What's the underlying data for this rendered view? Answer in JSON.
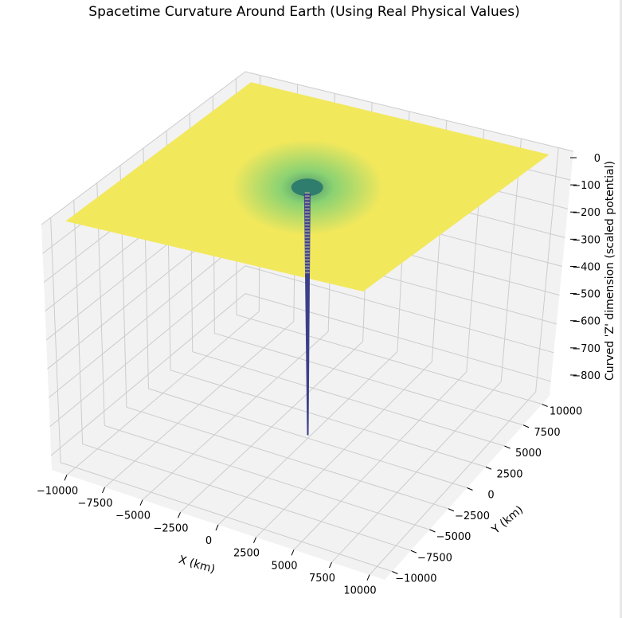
{
  "chart_data": {
    "type": "surface3d",
    "title": "Spacetime Curvature Around Earth (Using Real Physical Values)",
    "xlabel": "X (km)",
    "ylabel": "Y (km)",
    "zlabel": "Curved 'Z' dimension (scaled potential)",
    "x_range": [
      -11000,
      11000
    ],
    "y_range": [
      -11000,
      11000
    ],
    "z_range": [
      -850,
      0
    ],
    "x_ticks": [
      -10000,
      -7500,
      -5000,
      -2500,
      0,
      2500,
      5000,
      7500,
      10000
    ],
    "y_ticks": [
      -10000,
      -7500,
      -5000,
      -2500,
      0,
      2500,
      5000,
      7500,
      10000
    ],
    "z_ticks": [
      0,
      -100,
      -200,
      -300,
      -400,
      -500,
      -600,
      -700,
      -800
    ],
    "x_tick_labels": [
      "−10000",
      "−7500",
      "−5000",
      "−2500",
      "0",
      "2500",
      "5000",
      "7500",
      "10000"
    ],
    "y_tick_labels": [
      "−10000",
      "−7500",
      "−5000",
      "−2500",
      "0",
      "2500",
      "5000",
      "7500",
      "10000"
    ],
    "z_tick_labels": [
      "0",
      "−100",
      "−200",
      "−300",
      "−400",
      "−500",
      "−600",
      "−700",
      "−800"
    ],
    "surface_extent_km": [
      -10000,
      10000
    ],
    "surface_value_far": 0,
    "surface_value_center": -840,
    "colormap": "viridis",
    "grid": true,
    "colors": {
      "pane": "#f2f2f2",
      "grid": "#cccccc",
      "flat": "#f2e85c",
      "funnel": "#7fd075",
      "spike": "#3b3f8a"
    }
  }
}
